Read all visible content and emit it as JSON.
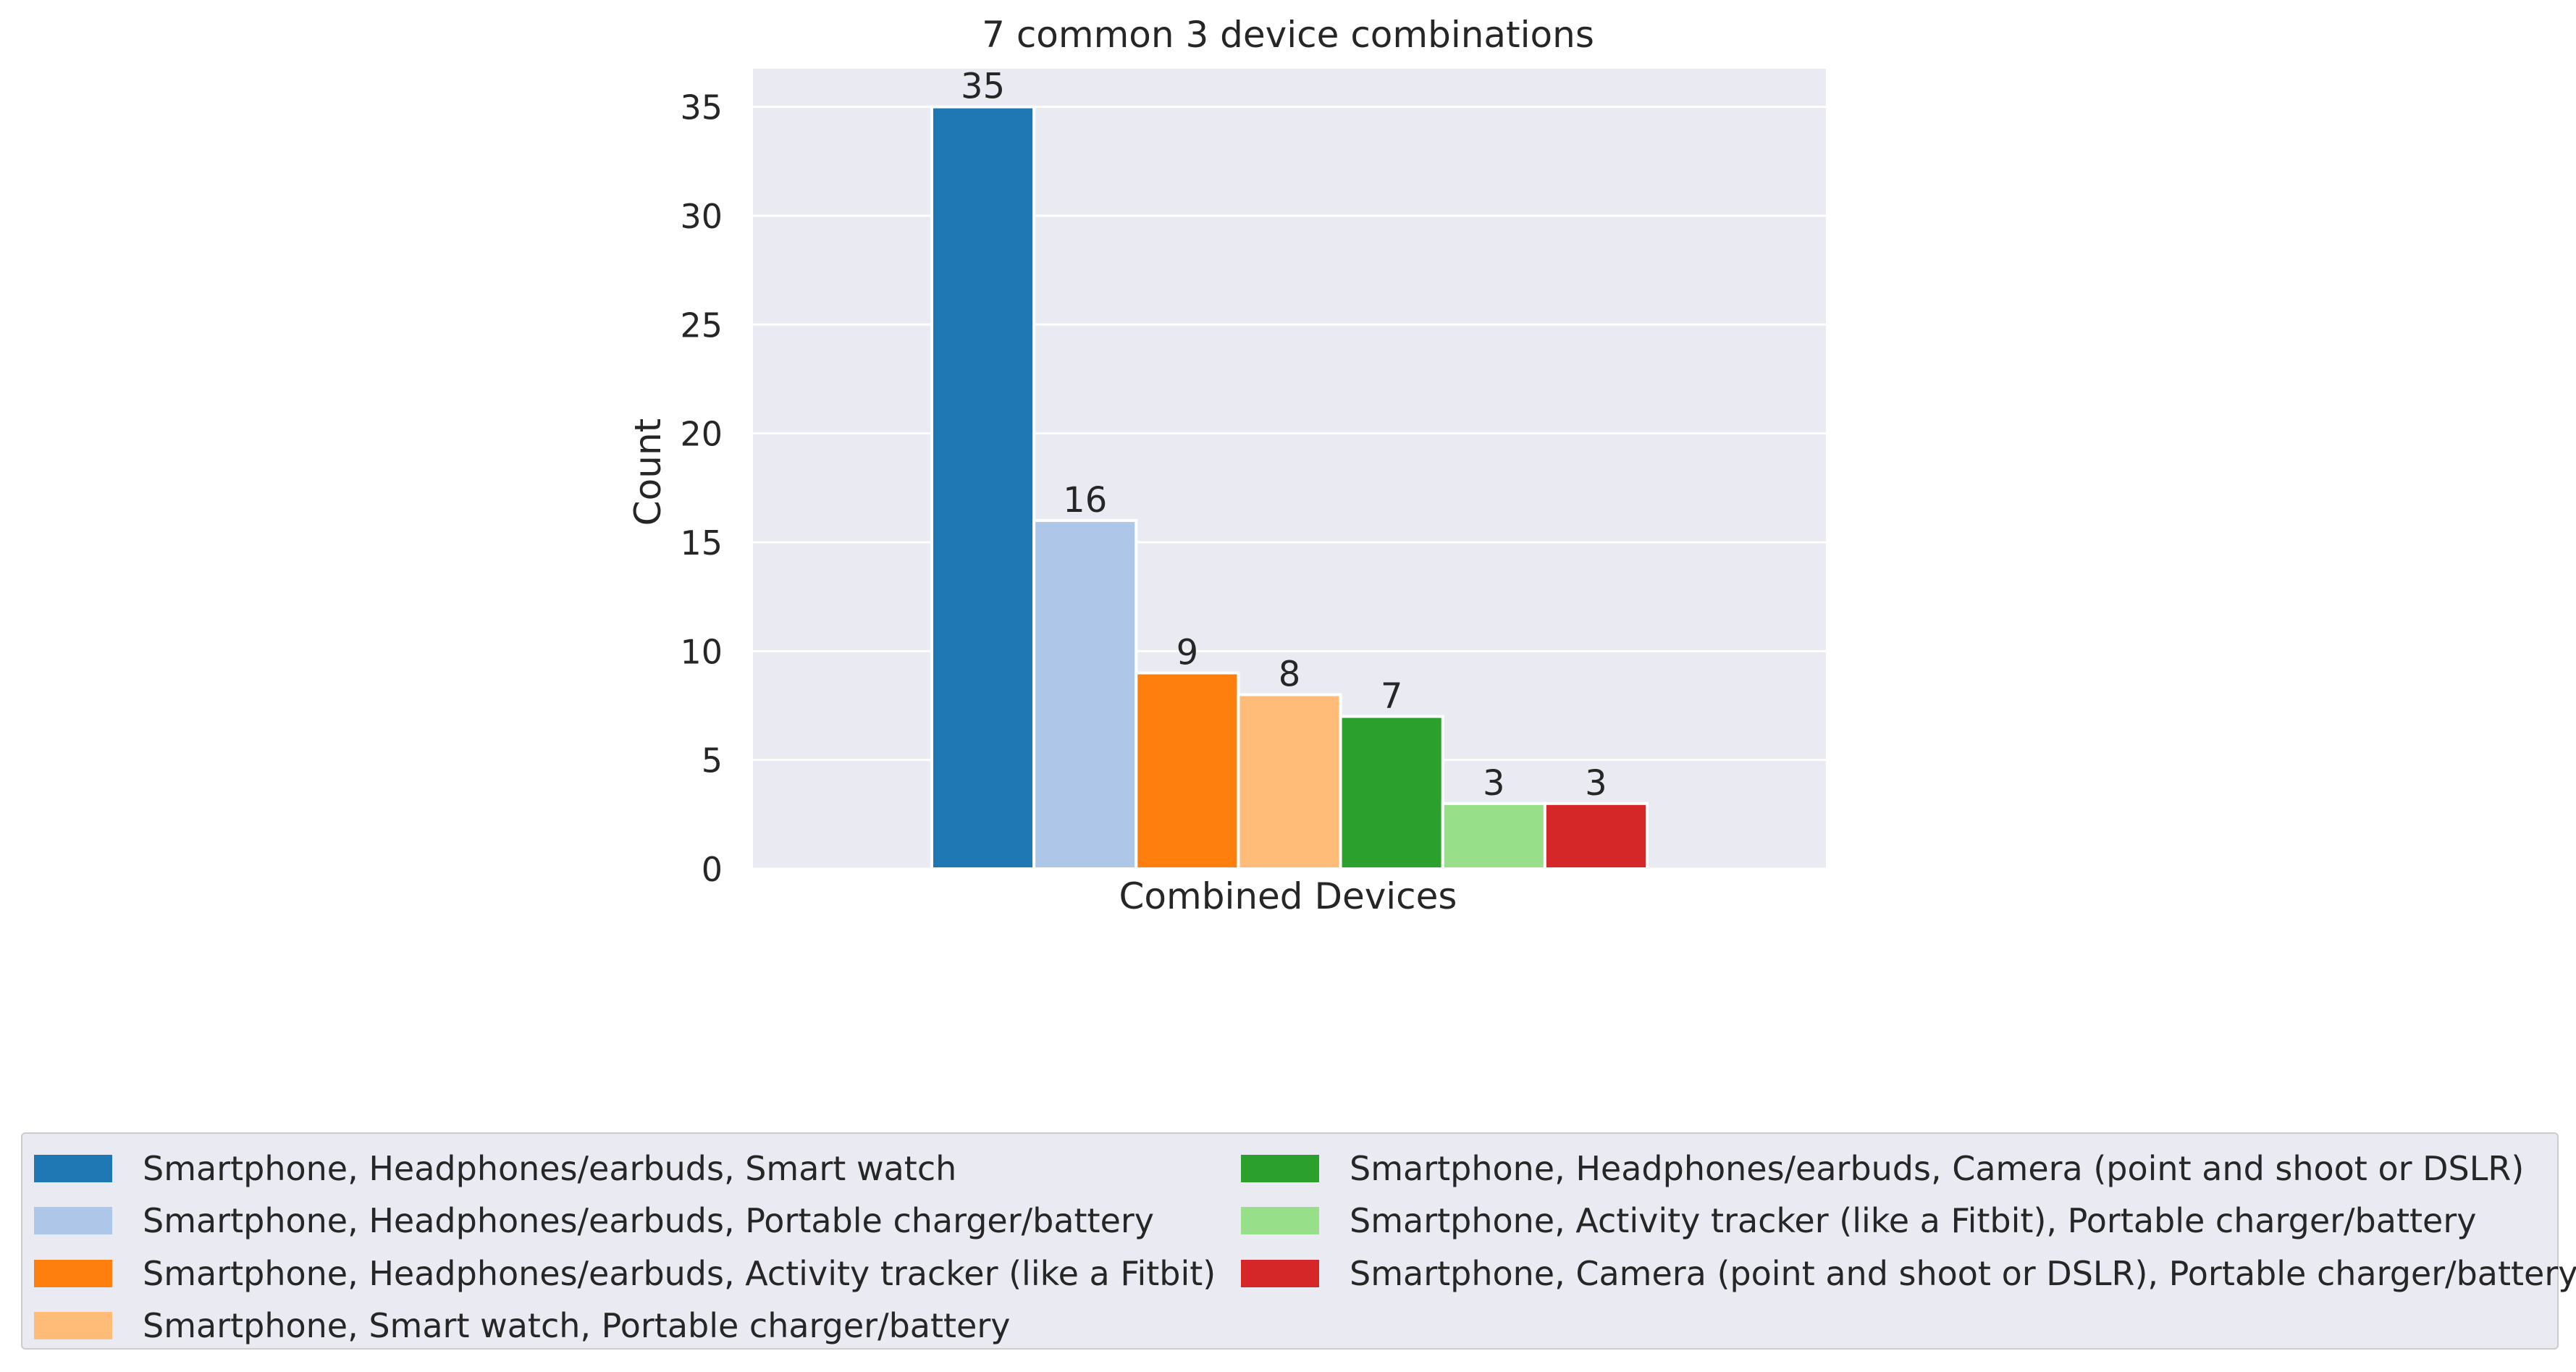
{
  "chart_data": {
    "type": "bar",
    "title": "7 common 3 device combinations",
    "xlabel": "Combined Devices",
    "ylabel": "Count",
    "ylim": [
      0,
      36.75
    ],
    "yticks": [
      0,
      5,
      10,
      15,
      20,
      25,
      30,
      35
    ],
    "grid": true,
    "legend_position": "bottom",
    "series": [
      {
        "name": "Smartphone, Headphones/earbuds, Smart watch",
        "value": 35,
        "color": "#1f77b4"
      },
      {
        "name": "Smartphone, Headphones/earbuds, Portable charger/battery",
        "value": 16,
        "color": "#aec7e8"
      },
      {
        "name": "Smartphone, Headphones/earbuds, Activity tracker (like a Fitbit)",
        "value": 9,
        "color": "#ff7f0e"
      },
      {
        "name": "Smartphone, Smart watch, Portable charger/battery",
        "value": 8,
        "color": "#ffbb78"
      },
      {
        "name": "Smartphone, Headphones/earbuds, Camera (point and shoot or DSLR)",
        "value": 7,
        "color": "#2ca02c"
      },
      {
        "name": "Smartphone, Activity tracker (like a Fitbit), Portable charger/battery",
        "value": 3,
        "color": "#98df8a"
      },
      {
        "name": "Smartphone, Camera (point and shoot or DSLR), Portable charger/battery",
        "value": 3,
        "color": "#d62728"
      }
    ]
  }
}
